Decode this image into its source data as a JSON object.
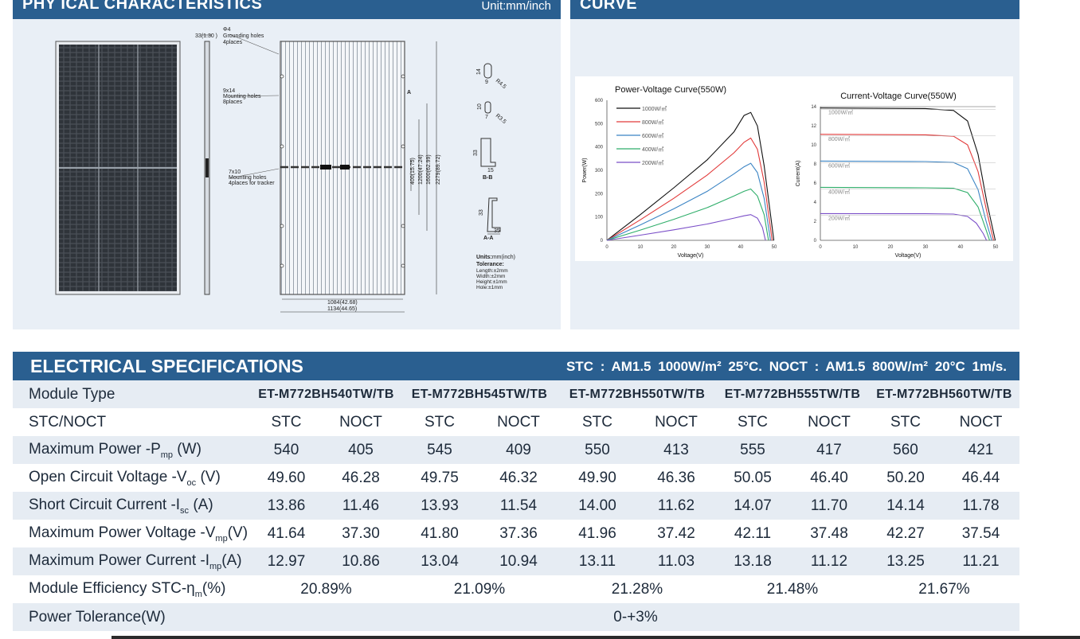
{
  "physical": {
    "title": "PHY  ICAL CHARACTERISTICS",
    "unit": "Unit:mm/inch",
    "dims": {
      "thickness": "33(1.30 )",
      "grounding": [
        "Φ4",
        "Grounding holes",
        "4places"
      ],
      "mounting": [
        "9x14",
        "Mounting holes",
        "8places"
      ],
      "tracker": [
        "7x10",
        "Mounting holes",
        "4places for tracker"
      ],
      "vert_400": "400(15.75)",
      "vert_1200": "1200(47.24)",
      "vert_1600": "1600(62.99)",
      "vert_2279": "2279(89.72)",
      "width_1084": "1084(42.68)",
      "width_1134": "1134(44.65)",
      "label_a": "A",
      "section_bb": "B-B",
      "section_aa": "A-A",
      "hole1": [
        "14",
        "9",
        "R4.5"
      ],
      "hole2": [
        "10",
        "7",
        "R3.5"
      ],
      "bb_h": "33",
      "bb_w": "15",
      "aa_h": "33",
      "aa_w": "35"
    },
    "units_title": "Units:",
    "units_value": "mm(inch)",
    "tolerance_title": "Tolerance:",
    "tolerance_lines": [
      "Length:±2mm",
      "Width:±2mm",
      "Height:±1mm",
      "Hole:±1mm"
    ]
  },
  "curve": {
    "title": "CURVE"
  },
  "chart_data": [
    {
      "type": "line",
      "title": "Power-Voltage Curve(550W)",
      "xlabel": "Voltage(V)",
      "ylabel": "Power(W)",
      "xlim": [
        0,
        50
      ],
      "ylim": [
        0,
        600
      ],
      "x_ticks": [
        "0",
        "10",
        "20",
        "30",
        "40",
        "50"
      ],
      "y_ticks": [
        "0",
        "100",
        "200",
        "300",
        "400",
        "500",
        "600"
      ],
      "legend": "top-left",
      "series": [
        {
          "name": "1000W/㎡",
          "color": "#111111",
          "points": [
            [
              0,
              0
            ],
            [
              10,
              110
            ],
            [
              20,
              225
            ],
            [
              30,
              345
            ],
            [
              38,
              465
            ],
            [
              41,
              535
            ],
            [
              43,
              548
            ],
            [
              45,
              490
            ],
            [
              47,
              320
            ],
            [
              49.9,
              0
            ]
          ]
        },
        {
          "name": "800W/㎡",
          "color": "#e23a3a",
          "points": [
            [
              0,
              0
            ],
            [
              10,
              88
            ],
            [
              20,
              180
            ],
            [
              30,
              280
            ],
            [
              38,
              375
            ],
            [
              41,
              420
            ],
            [
              43,
              438
            ],
            [
              45,
              390
            ],
            [
              47,
              250
            ],
            [
              49.4,
              0
            ]
          ]
        },
        {
          "name": "600W/㎡",
          "color": "#3b84c4",
          "points": [
            [
              0,
              0
            ],
            [
              10,
              66
            ],
            [
              20,
              135
            ],
            [
              30,
              210
            ],
            [
              38,
              285
            ],
            [
              41,
              315
            ],
            [
              43,
              330
            ],
            [
              45,
              290
            ],
            [
              47,
              180
            ],
            [
              48.9,
              0
            ]
          ]
        },
        {
          "name": "400W/㎡",
          "color": "#2fae6a",
          "points": [
            [
              0,
              0
            ],
            [
              10,
              44
            ],
            [
              20,
              90
            ],
            [
              30,
              140
            ],
            [
              38,
              190
            ],
            [
              41,
              210
            ],
            [
              43,
              220
            ],
            [
              45,
              190
            ],
            [
              47,
              110
            ],
            [
              48.3,
              0
            ]
          ]
        },
        {
          "name": "200W/㎡",
          "color": "#7b4fc8",
          "points": [
            [
              0,
              0
            ],
            [
              10,
              22
            ],
            [
              20,
              45
            ],
            [
              30,
              70
            ],
            [
              38,
              95
            ],
            [
              41,
              105
            ],
            [
              43,
              110
            ],
            [
              45,
              95
            ],
            [
              46.5,
              55
            ],
            [
              47.4,
              0
            ]
          ]
        }
      ]
    },
    {
      "type": "line",
      "title": "Current-Voltage Curve(550W)",
      "xlabel": "Voltage(V)",
      "ylabel": "Current(A)",
      "xlim": [
        0,
        50
      ],
      "ylim": [
        0,
        14
      ],
      "x_ticks": [
        "0",
        "10",
        "20",
        "30",
        "40",
        "50"
      ],
      "y_ticks": [
        "0",
        "2",
        "4",
        "6",
        "8",
        "10",
        "12",
        "14"
      ],
      "series": [
        {
          "name": "1000W/㎡",
          "color": "#111111",
          "points": [
            [
              0,
              13.86
            ],
            [
              30,
              13.8
            ],
            [
              38,
              13.6
            ],
            [
              42,
              12.5
            ],
            [
              45,
              9
            ],
            [
              47.5,
              4
            ],
            [
              49.9,
              0
            ]
          ]
        },
        {
          "name": "800W/㎡",
          "color": "#e23a3a",
          "points": [
            [
              0,
              11.1
            ],
            [
              30,
              11.05
            ],
            [
              38,
              10.9
            ],
            [
              42,
              10.0
            ],
            [
              45,
              7.2
            ],
            [
              47.5,
              3
            ],
            [
              49.4,
              0
            ]
          ]
        },
        {
          "name": "600W/㎡",
          "color": "#3b84c4",
          "points": [
            [
              0,
              8.3
            ],
            [
              30,
              8.25
            ],
            [
              38,
              8.15
            ],
            [
              42,
              7.5
            ],
            [
              45,
              5.3
            ],
            [
              47.3,
              2
            ],
            [
              48.9,
              0
            ]
          ]
        },
        {
          "name": "400W/㎡",
          "color": "#2fae6a",
          "points": [
            [
              0,
              5.55
            ],
            [
              30,
              5.5
            ],
            [
              38,
              5.45
            ],
            [
              42,
              5.0
            ],
            [
              45,
              3.5
            ],
            [
              47,
              1.4
            ],
            [
              48.3,
              0
            ]
          ]
        },
        {
          "name": "200W/㎡",
          "color": "#7b4fc8",
          "points": [
            [
              0,
              2.8
            ],
            [
              30,
              2.78
            ],
            [
              38,
              2.75
            ],
            [
              42,
              2.5
            ],
            [
              44.5,
              1.8
            ],
            [
              46.5,
              0.7
            ],
            [
              47.4,
              0
            ]
          ]
        }
      ]
    }
  ],
  "electrical": {
    "title": "ELECTRICAL SPECIFICATIONS",
    "conditions": "STC : AM1.5   1000W/m²   25°C.   NOCT : AM1.5   800W/m²   20°C   1m/s.",
    "module_type_label": "Module Type",
    "models": [
      "ET-M772BH540TW/TB",
      "ET-M772BH545TW/TB",
      "ET-M772BH550TW/TB",
      "ET-M772BH555TW/TB",
      "ET-M772BH560TW/TB"
    ],
    "stc_noct_label": "STC/NOCT",
    "stc": "STC",
    "noct": "NOCT",
    "rows": [
      {
        "label": "Maximum Power -P",
        "sub": "mp",
        "unit": " (W)",
        "values": [
          "540",
          "405",
          "545",
          "409",
          "550",
          "413",
          "555",
          "417",
          "560",
          "421"
        ]
      },
      {
        "label": "Open Circuit Voltage -V",
        "sub": "oc",
        "unit": " (V)",
        "values": [
          "49.60",
          "46.28",
          "49.75",
          "46.32",
          "49.90",
          "46.36",
          "50.05",
          "46.40",
          "50.20",
          "46.44"
        ]
      },
      {
        "label": "Short Circuit Current -I",
        "sub": "sc",
        "unit": " (A)",
        "values": [
          "13.86",
          "11.46",
          "13.93",
          "11.54",
          "14.00",
          "11.62",
          "14.07",
          "11.70",
          "14.14",
          "11.78"
        ]
      },
      {
        "label": "Maximum Power Voltage -V",
        "sub": "mp",
        "unit": "(V)",
        "values": [
          "41.64",
          "37.30",
          "41.80",
          "37.36",
          "41.96",
          "37.42",
          "42.11",
          "37.48",
          "42.27",
          "37.54"
        ]
      },
      {
        "label": "Maximum Power Current -I",
        "sub": "mp",
        "unit": "(A)",
        "values": [
          "12.97",
          "10.86",
          "13.04",
          "10.94",
          "13.11",
          "11.03",
          "13.18",
          "11.12",
          "13.25",
          "11.21"
        ]
      }
    ],
    "efficiency": {
      "label": "Module Efficiency STC-η",
      "sub": "m",
      "unit": "(%)",
      "values": [
        "20.89%",
        "21.09%",
        "21.28%",
        "21.48%",
        "21.67%"
      ]
    },
    "tolerance": {
      "label": "Power Tolerance(W)",
      "value": "0-+3%"
    }
  }
}
